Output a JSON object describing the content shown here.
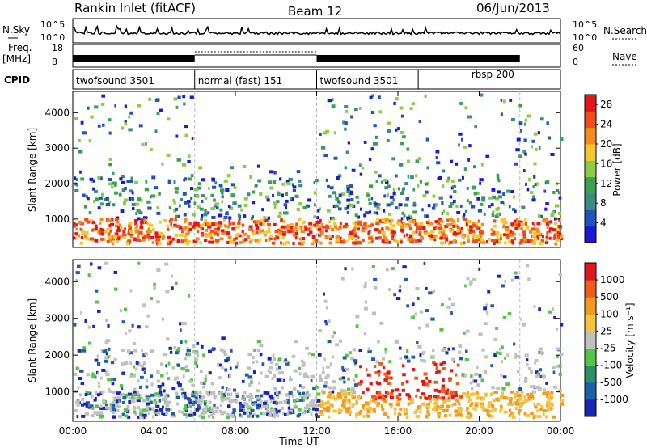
{
  "header": {
    "station": "Rankin Inlet (fitACF)",
    "beam": "Beam 12",
    "date": "06/Jun/2013"
  },
  "left_labels": {
    "nsky": "N.Sky",
    "nsky_ticks": [
      "10^5",
      "10^0"
    ],
    "freq": "Freq.",
    "freq_unit": "[MHz]",
    "freq_ticks": [
      "18",
      "8"
    ],
    "cpid": "CPID"
  },
  "right_labels": {
    "nsearch": "N.Search",
    "nsearch_ticks": [
      "10^5",
      "10^0"
    ],
    "nave": "Nave",
    "nave_ticks": [
      "60",
      "0"
    ]
  },
  "cpid_segments": [
    {
      "label": "twofsound 3501",
      "start": 0,
      "end": 6
    },
    {
      "label": "normal (fast) 151",
      "start": 6,
      "end": 12
    },
    {
      "label": "twofsound 3501",
      "start": 12,
      "end": 17
    },
    {
      "label": "rbsp 200",
      "start": 17,
      "end": 22
    }
  ],
  "chart_data": [
    {
      "type": "heatmap",
      "name": "power",
      "ylabel": "Slant Range [km]",
      "yticks": [
        1000,
        2000,
        3000,
        4000
      ],
      "ylim": [
        200,
        4600
      ],
      "xlim": [
        0,
        24
      ],
      "colorbar": {
        "label": "Power [dB]",
        "ticks": [
          "4",
          "8",
          "12",
          "16",
          "20",
          "24",
          "28"
        ],
        "range": [
          0,
          30
        ],
        "colors": [
          "#1c19d6",
          "#2153b8",
          "#3b8b7e",
          "#3aa055",
          "#8dca46",
          "#f4c72e",
          "#f38b1d",
          "#ef4d1b",
          "#e3161b"
        ]
      }
    },
    {
      "type": "heatmap",
      "name": "velocity",
      "ylabel": "Slant Range [km]",
      "yticks": [
        1000,
        2000,
        3000,
        4000
      ],
      "ylim": [
        200,
        4600
      ],
      "xlim": [
        0,
        24
      ],
      "xticks": [
        "00:00",
        "04:00",
        "08:00",
        "12:00",
        "16:00",
        "20:00",
        "00:00"
      ],
      "xlabel": "Time UT",
      "colorbar": {
        "label": "Velocity [m s⁻¹]",
        "ticks": [
          "1000",
          "500",
          "100",
          "25",
          "-25",
          "-100",
          "-500",
          "-1000"
        ],
        "colors": [
          "#1a24b8",
          "#215ea8",
          "#2c8f6b",
          "#57c449",
          "#c0c0c0",
          "#f4c43c",
          "#f29a1e",
          "#ef5d1a",
          "#e3161b"
        ]
      }
    }
  ],
  "axis": {
    "xticks": [
      "00:00",
      "04:00",
      "08:00",
      "12:00",
      "16:00",
      "20:00",
      "00:00"
    ],
    "xlabel": "Time UT"
  }
}
